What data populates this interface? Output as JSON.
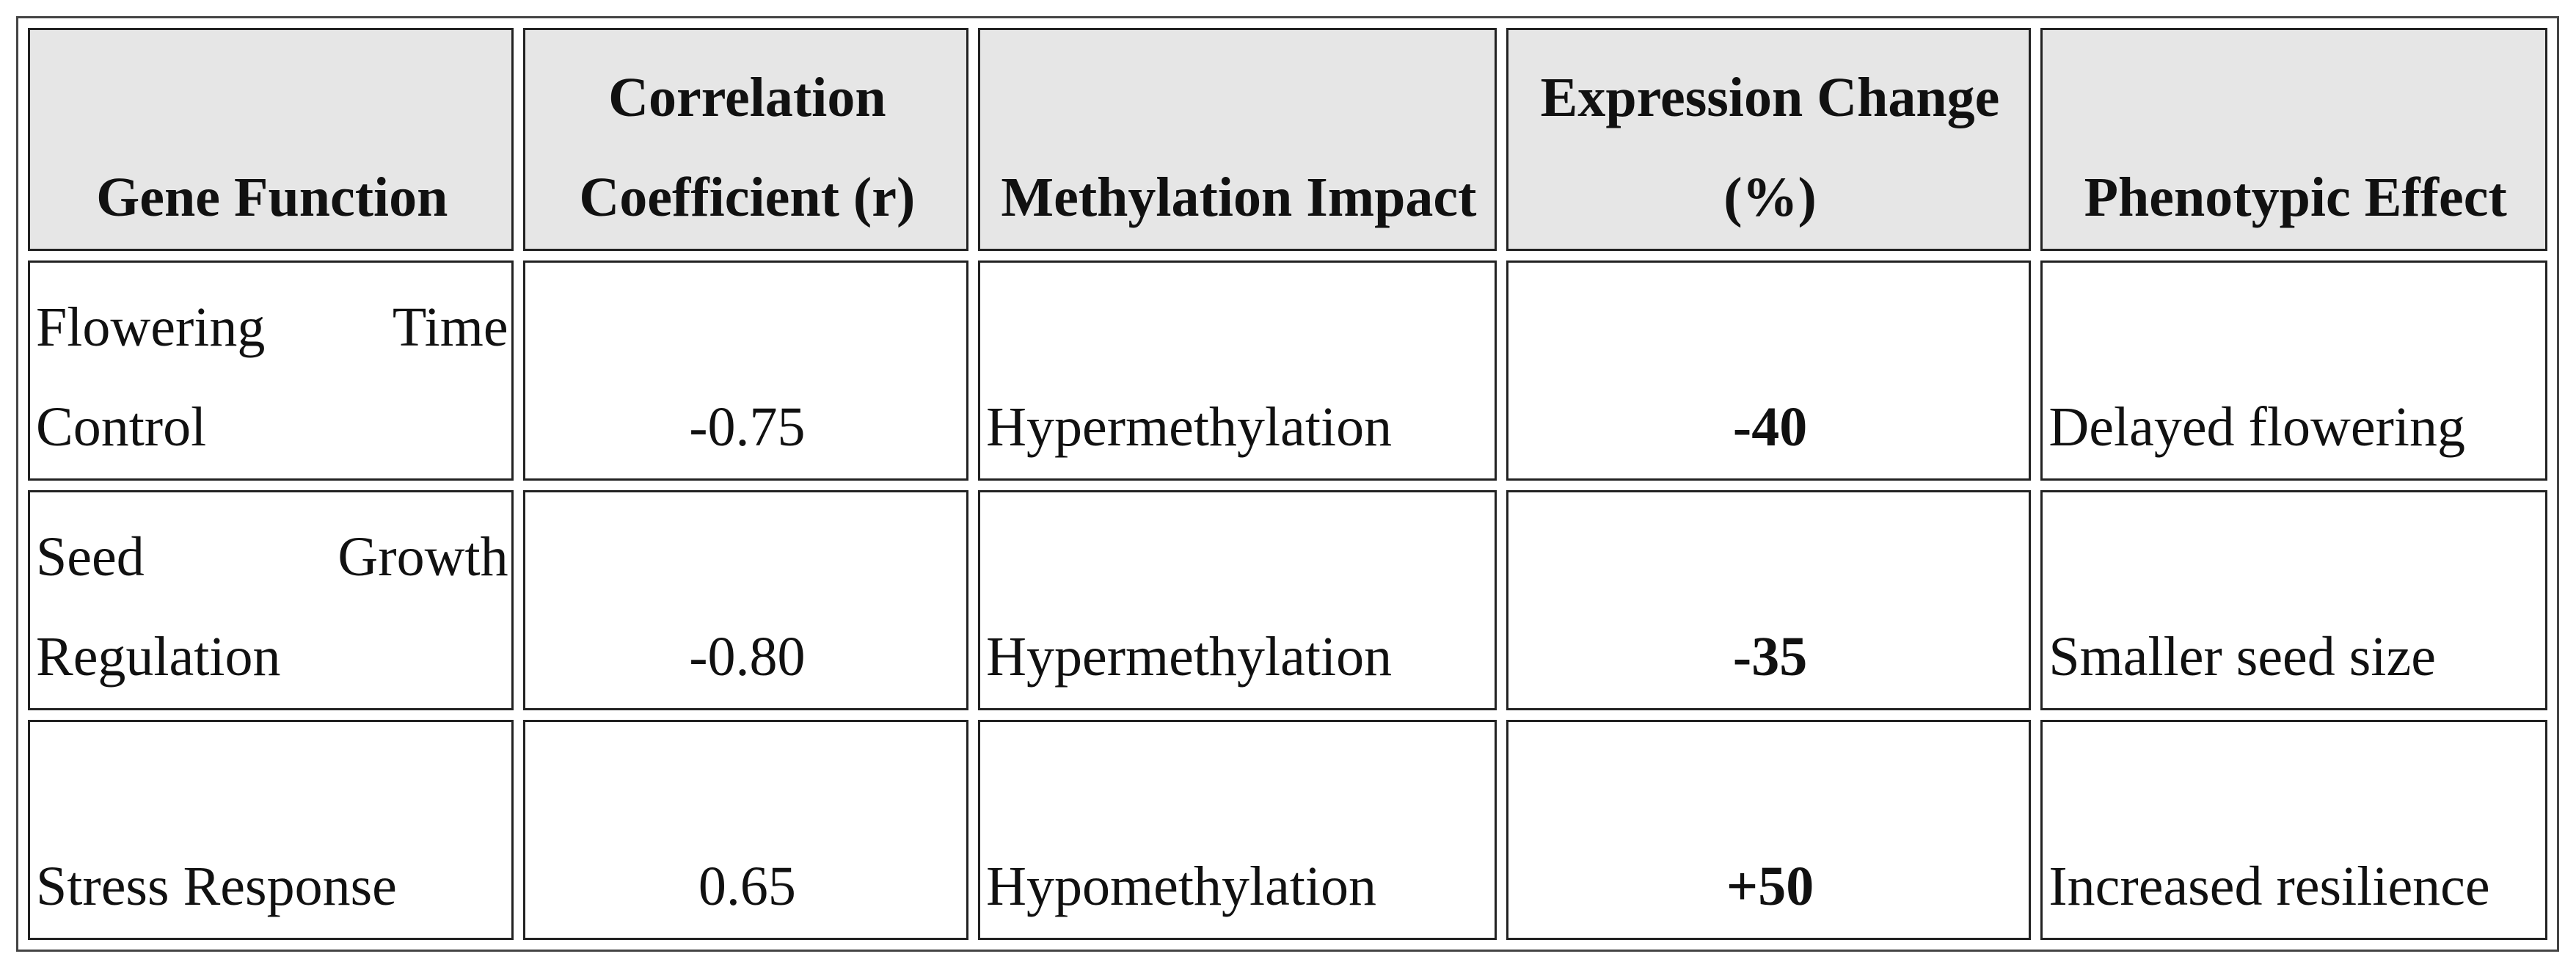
{
  "table": {
    "headers": [
      "Gene Function",
      "Correlation Coefficient (r)",
      "Methylation Impact",
      "Expression Change (%)",
      "Phenotypic Effect"
    ],
    "rows": [
      [
        "Flowering Time Control",
        "-0.75",
        "Hypermethylation",
        "-40",
        "Delayed flowering"
      ],
      [
        "Seed Growth Regulation",
        "-0.80",
        "Hypermethylation",
        "-35",
        "Smaller seed size"
      ],
      [
        "Stress Response",
        "0.65",
        "Hypomethylation",
        "+50",
        "Increased resilience"
      ]
    ]
  }
}
